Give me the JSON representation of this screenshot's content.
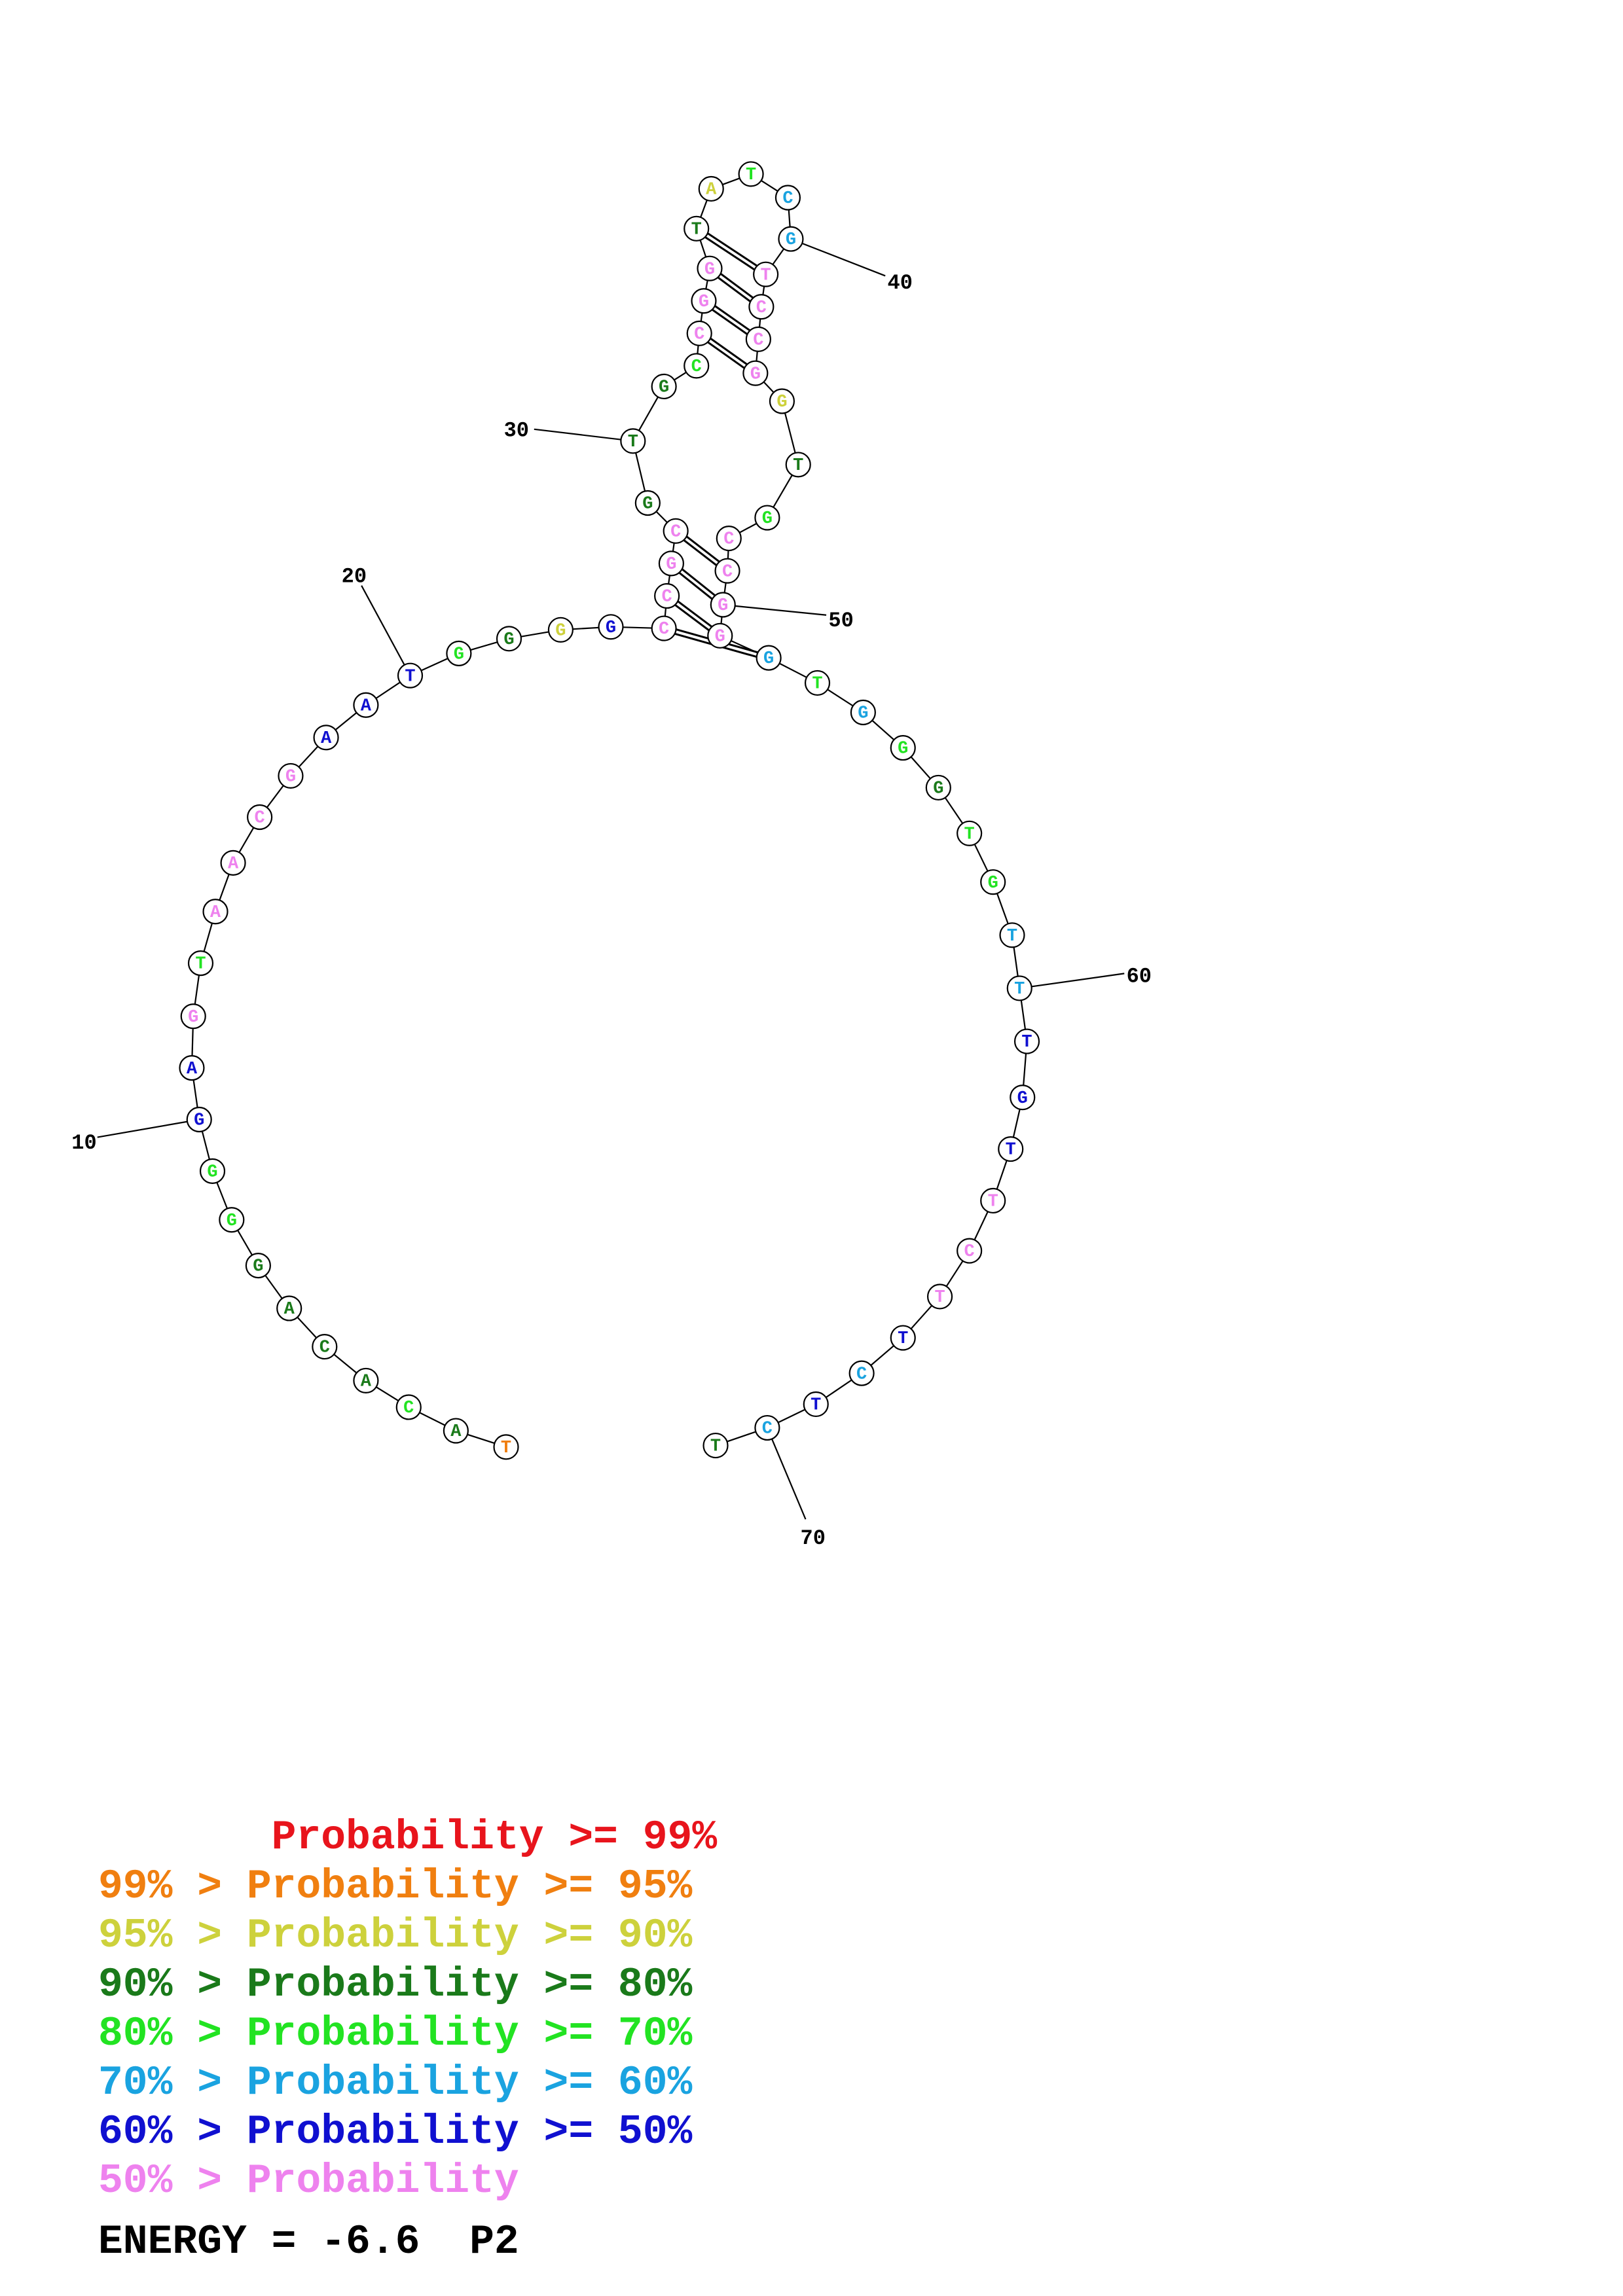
{
  "colors": {
    "red": "#e8141c",
    "orange": "#f07f10",
    "yellow": "#cdd13c",
    "dark_green": "#1a7a1a",
    "green": "#22e322",
    "cyan": "#1aa3e0",
    "blue": "#1010d0",
    "pink": "#ee82ee"
  },
  "structure": {
    "sequence": [
      "T",
      "A",
      "C",
      "A",
      "C",
      "A",
      "G",
      "G",
      "G",
      "G",
      "A",
      "G",
      "T",
      "A",
      "A",
      "C",
      "G",
      "A",
      "A",
      "T",
      "G",
      "G",
      "G",
      "G",
      "C",
      "C",
      "G",
      "C",
      "G",
      "T",
      "G",
      "C",
      "C",
      "G",
      "G",
      "T",
      "A",
      "T",
      "C",
      "G",
      "T",
      "C",
      "C",
      "G",
      "G",
      "T",
      "G",
      "C",
      "C",
      "G",
      "G",
      "G",
      "T",
      "G",
      "G",
      "G",
      "T",
      "G",
      "T",
      "T",
      "T",
      "G",
      "T",
      "T",
      "C",
      "T",
      "T",
      "C",
      "T",
      "C",
      "T"
    ],
    "probability_class": [
      "orange",
      "dark_green",
      "green",
      "dark_green",
      "dark_green",
      "dark_green",
      "dark_green",
      "green",
      "green",
      "blue",
      "blue",
      "pink",
      "green",
      "pink",
      "pink",
      "pink",
      "pink",
      "blue",
      "blue",
      "blue",
      "green",
      "dark_green",
      "yellow",
      "blue",
      "pink",
      "pink",
      "pink",
      "pink",
      "dark_green",
      "dark_green",
      "dark_green",
      "green",
      "pink",
      "pink",
      "pink",
      "dark_green",
      "yellow",
      "green",
      "cyan",
      "cyan",
      "pink",
      "pink",
      "pink",
      "pink",
      "yellow",
      "dark_green",
      "green",
      "pink",
      "pink",
      "pink",
      "pink",
      "cyan",
      "green",
      "cyan",
      "green",
      "dark_green",
      "green",
      "green",
      "cyan",
      "cyan",
      "blue",
      "blue",
      "blue",
      "pink",
      "pink",
      "pink",
      "blue",
      "cyan",
      "blue",
      "cyan",
      "dark_green"
    ],
    "base_pairs": [
      [
        25,
        52
      ],
      [
        26,
        51
      ],
      [
        27,
        50
      ],
      [
        28,
        49
      ],
      [
        33,
        44
      ],
      [
        34,
        43
      ],
      [
        35,
        42
      ],
      [
        36,
        41
      ]
    ],
    "number_labels": [
      {
        "index": 10,
        "text": "10"
      },
      {
        "index": 20,
        "text": "20"
      },
      {
        "index": 30,
        "text": "30"
      },
      {
        "index": 40,
        "text": "40"
      },
      {
        "index": 50,
        "text": "50"
      },
      {
        "index": 60,
        "text": "60"
      },
      {
        "index": 70,
        "text": "70"
      }
    ]
  },
  "legend": {
    "lines": [
      {
        "text": "       Probability >= 99%",
        "color_key": "red"
      },
      {
        "text": "99% > Probability >= 95%",
        "color_key": "orange"
      },
      {
        "text": "95% > Probability >= 90%",
        "color_key": "yellow"
      },
      {
        "text": "90% > Probability >= 80%",
        "color_key": "dark_green"
      },
      {
        "text": "80% > Probability >= 70%",
        "color_key": "green"
      },
      {
        "text": "70% > Probability >= 60%",
        "color_key": "cyan"
      },
      {
        "text": "60% > Probability >= 50%",
        "color_key": "blue"
      },
      {
        "text": "50% > Probability",
        "color_key": "pink"
      }
    ],
    "energy": "ENERGY = -6.6  P2"
  }
}
